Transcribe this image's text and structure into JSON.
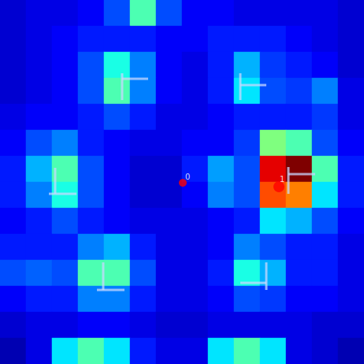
{
  "chart_data": {
    "type": "heatmap",
    "xlim": [
      0,
      462
    ],
    "ylim": [
      0,
      462
    ],
    "tick_labels": false,
    "grid": false,
    "value_range": [
      0,
      1
    ],
    "cells": [
      [
        0.08,
        0.1,
        0.1,
        0.12,
        0.2,
        0.45,
        0.2,
        0.12,
        0.12,
        0.1,
        0.1,
        0.1,
        0.1,
        0.08
      ],
      [
        0.08,
        0.1,
        0.12,
        0.15,
        0.15,
        0.15,
        0.12,
        0.12,
        0.15,
        0.15,
        0.15,
        0.12,
        0.1,
        0.08
      ],
      [
        0.08,
        0.1,
        0.12,
        0.2,
        0.4,
        0.25,
        0.12,
        0.1,
        0.15,
        0.3,
        0.18,
        0.15,
        0.12,
        0.08
      ],
      [
        0.08,
        0.1,
        0.12,
        0.2,
        0.45,
        0.25,
        0.12,
        0.1,
        0.15,
        0.35,
        0.2,
        0.18,
        0.25,
        0.1
      ],
      [
        0.1,
        0.12,
        0.12,
        0.15,
        0.2,
        0.15,
        0.1,
        0.1,
        0.12,
        0.15,
        0.15,
        0.15,
        0.18,
        0.1
      ],
      [
        0.12,
        0.2,
        0.25,
        0.15,
        0.12,
        0.1,
        0.1,
        0.12,
        0.12,
        0.18,
        0.5,
        0.45,
        0.2,
        0.12
      ],
      [
        0.15,
        0.3,
        0.45,
        0.2,
        0.12,
        0.08,
        0.08,
        0.15,
        0.28,
        0.2,
        0.9,
        1.0,
        0.45,
        0.15
      ],
      [
        0.15,
        0.25,
        0.4,
        0.2,
        0.12,
        0.08,
        0.08,
        0.12,
        0.25,
        0.2,
        0.8,
        0.75,
        0.35,
        0.15
      ],
      [
        0.12,
        0.15,
        0.2,
        0.15,
        0.12,
        0.1,
        0.1,
        0.1,
        0.12,
        0.15,
        0.35,
        0.3,
        0.2,
        0.12
      ],
      [
        0.15,
        0.15,
        0.15,
        0.25,
        0.3,
        0.15,
        0.1,
        0.1,
        0.12,
        0.25,
        0.2,
        0.15,
        0.15,
        0.1
      ],
      [
        0.2,
        0.22,
        0.2,
        0.45,
        0.45,
        0.2,
        0.1,
        0.1,
        0.15,
        0.4,
        0.3,
        0.15,
        0.15,
        0.1
      ],
      [
        0.12,
        0.15,
        0.15,
        0.25,
        0.25,
        0.15,
        0.1,
        0.1,
        0.12,
        0.2,
        0.18,
        0.12,
        0.12,
        0.1
      ],
      [
        0.08,
        0.1,
        0.1,
        0.12,
        0.12,
        0.1,
        0.08,
        0.08,
        0.1,
        0.1,
        0.1,
        0.1,
        0.08,
        0.08
      ],
      [
        0.05,
        0.1,
        0.35,
        0.45,
        0.35,
        0.15,
        0.1,
        0.1,
        0.35,
        0.45,
        0.35,
        0.1,
        0.08,
        0.05
      ]
    ],
    "points": [
      {
        "label": "0",
        "x": 232,
        "y": 232
      },
      {
        "label": "1",
        "x": 354,
        "y": 237
      }
    ],
    "color": "#ff0000"
  }
}
